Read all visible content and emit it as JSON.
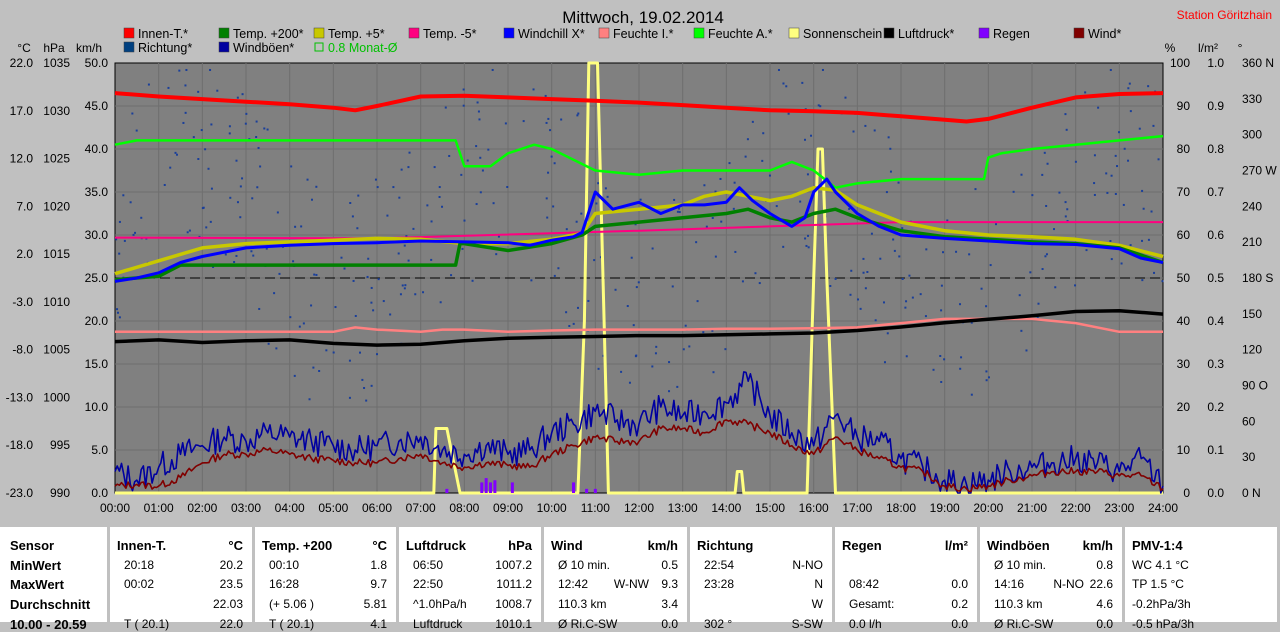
{
  "title": "Mittwoch, 19.02.2014",
  "station": "Station Göritzhain",
  "chart_data": {
    "type": "line",
    "x_labels": [
      "00:00",
      "01:00",
      "02:00",
      "03:00",
      "04:00",
      "05:00",
      "06:00",
      "07:00",
      "08:00",
      "09:00",
      "10:00",
      "11:00",
      "12:00",
      "13:00",
      "14:00",
      "15:00",
      "16:00",
      "17:00",
      "18:00",
      "19:00",
      "20:00",
      "21:00",
      "22:00",
      "23:00",
      "24:00"
    ],
    "xlim": [
      0,
      24
    ],
    "axes": {
      "temp": {
        "label": "°C",
        "ticks": [
          "22.0",
          "17.0",
          "12.0",
          "7.0",
          "2.0",
          "-3.0",
          "-8.0",
          "-13.0",
          "-18.0",
          "-23.0"
        ],
        "range": [
          -23,
          27
        ]
      },
      "pressure": {
        "label": "hPa",
        "ticks": [
          "1035",
          "1030",
          "1025",
          "1020",
          "1015",
          "1010",
          "1005",
          "1000",
          "995",
          "990"
        ],
        "range": [
          990,
          1040
        ]
      },
      "wind": {
        "label": "km/h",
        "ticks": [
          "50.0",
          "45.0",
          "40.0",
          "35.0",
          "30.0",
          "25.0",
          "20.0",
          "15.0",
          "10.0",
          "5.0",
          "0.0"
        ],
        "range": [
          0,
          50
        ]
      },
      "humidity": {
        "label": "%",
        "ticks": [
          "100",
          "90",
          "80",
          "70",
          "60",
          "50",
          "40",
          "30",
          "20",
          "10",
          "0"
        ],
        "range": [
          0,
          100
        ]
      },
      "rain": {
        "label": "l/m²",
        "ticks": [
          "1.0",
          "0.9",
          "0.8",
          "0.7",
          "0.6",
          "0.5",
          "0.4",
          "0.3",
          "0.2",
          "0.1",
          "0.0"
        ],
        "range": [
          0,
          1
        ]
      },
      "direction": {
        "label": "°",
        "ticks": [
          "360 N",
          "330",
          "300",
          "270 W",
          "240",
          "210",
          "180 S",
          "150",
          "120",
          "90 O",
          "60",
          "30",
          "0 N"
        ],
        "range": [
          0,
          360
        ]
      }
    },
    "legend": [
      {
        "name": "Innen-T.*",
        "color": "#ff0000"
      },
      {
        "name": "Temp. +200*",
        "color": "#008000"
      },
      {
        "name": "Temp. +5*",
        "color": "#c8c800"
      },
      {
        "name": "Temp. -5*",
        "color": "#ff0080"
      },
      {
        "name": "Windchill X*",
        "color": "#0000ff"
      },
      {
        "name": "Feuchte I.*",
        "color": "#ff8080"
      },
      {
        "name": "Feuchte A.*",
        "color": "#00ff00"
      },
      {
        "name": "Sonnenschein",
        "color": "#ffff80"
      },
      {
        "name": "Luftdruck*",
        "color": "#000000"
      },
      {
        "name": "Regen",
        "color": "#8000ff"
      },
      {
        "name": "Wind*",
        "color": "#800000"
      },
      {
        "name": "Richtung*",
        "color": "#004080"
      },
      {
        "name": "Windböen*",
        "color": "#0000a0"
      },
      {
        "name": "0.8 Monat-Ø",
        "color": "#00c000"
      }
    ],
    "series": [
      {
        "name": "Innen-T.*",
        "axis": "temp",
        "color": "#ff0000",
        "x": [
          0,
          1,
          2,
          3,
          4,
          5,
          5.5,
          6,
          7,
          8,
          9,
          10,
          11,
          12,
          13,
          14,
          15,
          16,
          17,
          18,
          19,
          19.5,
          20,
          21,
          22,
          23,
          24
        ],
        "y": [
          23.5,
          23.1,
          22.8,
          22.5,
          22.2,
          21.8,
          21.5,
          22.0,
          23.1,
          23.2,
          23.0,
          22.8,
          22.6,
          22.4,
          22.1,
          21.8,
          21.5,
          21.4,
          21.2,
          20.8,
          20.4,
          20.2,
          20.5,
          21.8,
          23.0,
          23.4,
          23.5
        ]
      },
      {
        "name": "Feuchte A.*",
        "axis": "humidity",
        "color": "#00ff00",
        "x": [
          0,
          0.5,
          1,
          2,
          3,
          4,
          5,
          6,
          7,
          7.8,
          8,
          8.6,
          9,
          9.6,
          10,
          11,
          12,
          13,
          14,
          15,
          15.5,
          16,
          16.5,
          17,
          18,
          19,
          19.9,
          20,
          20.3,
          21,
          22,
          23,
          24
        ],
        "y": [
          81,
          82,
          82,
          82,
          82,
          82,
          82,
          82,
          82,
          82,
          76,
          76,
          79,
          81,
          80,
          75,
          74,
          75,
          75,
          75,
          77,
          75,
          71,
          72,
          73,
          73,
          73,
          78,
          79,
          80,
          81,
          82,
          83
        ]
      },
      {
        "name": "Temp. +5*",
        "axis": "temp",
        "color": "#c8c800",
        "x": [
          0,
          1,
          2,
          3,
          4,
          5,
          6,
          7,
          8,
          9,
          10,
          10.7,
          11,
          12,
          13,
          13.5,
          14,
          14.5,
          15,
          15.5,
          16,
          16.5,
          17,
          18,
          19,
          20,
          21,
          22,
          23,
          24
        ],
        "y": [
          2.5,
          4.0,
          5.5,
          6.0,
          6.2,
          6.4,
          6.6,
          6.5,
          6.0,
          6.0,
          6.5,
          7.2,
          9.5,
          10.0,
          10.5,
          11.5,
          12.0,
          11.5,
          11.0,
          11.5,
          12.5,
          12.2,
          10.5,
          8.5,
          7.5,
          7.0,
          6.8,
          6.5,
          5.8,
          4.5
        ]
      },
      {
        "name": "Temp. +200*",
        "axis": "temp",
        "color": "#008000",
        "x": [
          0,
          1,
          1.5,
          2,
          3,
          4,
          5,
          6,
          7,
          7.8,
          7.9,
          8,
          9,
          10,
          10.7,
          11,
          12,
          13,
          14,
          14.5,
          15,
          15.5,
          16,
          16.5,
          17,
          18,
          19,
          20,
          21,
          22,
          23,
          24
        ],
        "y": [
          1.8,
          2.2,
          3.5,
          3.5,
          3.5,
          3.5,
          3.5,
          3.5,
          3.5,
          3.5,
          6.0,
          6.0,
          5.2,
          6.0,
          7.0,
          8.0,
          8.5,
          9.0,
          9.5,
          10.0,
          9.0,
          8.5,
          9.5,
          10.0,
          9.0,
          7.5,
          6.8,
          6.5,
          6.2,
          6.0,
          5.5,
          3.8
        ]
      },
      {
        "name": "Windchill X*",
        "axis": "temp",
        "color": "#0000ff",
        "x": [
          0,
          0.5,
          1,
          1.5,
          2,
          3,
          4,
          5,
          6,
          7,
          8,
          9,
          9.5,
          10,
          10.5,
          10.7,
          11,
          11.4,
          12,
          12.5,
          13,
          13.5,
          14,
          14.3,
          14.6,
          15,
          15.5,
          15.8,
          16,
          16.3,
          16.5,
          17,
          17.5,
          18,
          19,
          20,
          21,
          22,
          23,
          23.5,
          24
        ],
        "y": [
          1.6,
          2.0,
          2.6,
          3.8,
          4.5,
          5.5,
          5.8,
          6.0,
          6.1,
          6.3,
          6.2,
          6.1,
          5.8,
          6.4,
          6.8,
          7.3,
          12.0,
          10.0,
          10.8,
          9.5,
          10.5,
          10.5,
          10.8,
          12.5,
          11.0,
          9.5,
          8.0,
          9.0,
          12.0,
          13.5,
          12.0,
          9.5,
          8.0,
          7.0,
          6.6,
          6.3,
          6.0,
          5.9,
          5.4,
          4.3,
          3.8
        ]
      },
      {
        "name": "Temp. -5*",
        "axis": "temp",
        "color": "#ff0080",
        "x": [
          0,
          6,
          12,
          18,
          24
        ],
        "y": [
          6.7,
          6.6,
          7.5,
          8.5,
          8.5
        ]
      },
      {
        "name": "Luftdruck*",
        "axis": "pressure",
        "color": "#000000",
        "x": [
          0,
          1,
          2,
          3,
          4,
          5,
          6,
          7,
          8,
          9,
          10,
          11,
          12,
          13,
          14,
          15,
          16,
          17,
          18,
          19,
          20,
          21,
          22,
          23,
          24
        ],
        "y": [
          1007.6,
          1007.8,
          1007.5,
          1007.7,
          1007.8,
          1007.4,
          1007.2,
          1007.3,
          1007.7,
          1008.0,
          1008.1,
          1008.2,
          1008.3,
          1008.3,
          1008.4,
          1008.5,
          1008.6,
          1008.9,
          1009.3,
          1009.8,
          1010.2,
          1010.6,
          1011.1,
          1011.2,
          1010.8
        ]
      },
      {
        "name": "Feuchte I.*",
        "axis": "humidity",
        "color": "#ff8080",
        "x": [
          0,
          2,
          4,
          5,
          5.5,
          6,
          7,
          7.5,
          8,
          9,
          10,
          11,
          12,
          13,
          14,
          15,
          16,
          17,
          18,
          19,
          20,
          21,
          22,
          23,
          24
        ],
        "y": [
          37.5,
          37.5,
          37.5,
          37.5,
          38.5,
          38,
          37.5,
          38,
          38,
          37.5,
          37.8,
          38,
          38,
          38,
          38.2,
          38.2,
          38.3,
          38.5,
          39.5,
          40.5,
          40.5,
          40.5,
          39.5,
          37.5,
          37.5
        ]
      },
      {
        "name": "Windböen*",
        "axis": "wind",
        "color": "#0000a0",
        "x": [
          0,
          0.5,
          1,
          1.5,
          2,
          2.5,
          3,
          3.5,
          4,
          4.5,
          5,
          5.5,
          6,
          6.5,
          7,
          7.5,
          8,
          8.5,
          9,
          9.5,
          10,
          10.5,
          11,
          11.5,
          12,
          12.5,
          13,
          13.5,
          14,
          14.5,
          15,
          15.5,
          16,
          16.5,
          17,
          17.5,
          18,
          18.5,
          19,
          19.5,
          20,
          20.5,
          21,
          21.5,
          22,
          22.5,
          23,
          23.5,
          24
        ],
        "y": [
          2.5,
          1.5,
          3.0,
          4.5,
          5.5,
          6.5,
          6.0,
          7.0,
          6.5,
          6.0,
          5.5,
          5.0,
          5.5,
          6.0,
          6.5,
          5.0,
          4.5,
          5.5,
          4.5,
          5.0,
          7.0,
          8.0,
          9.5,
          8.5,
          8.0,
          10.0,
          9.0,
          9.5,
          10.5,
          13.0,
          9.0,
          7.0,
          5.5,
          9.0,
          6.5,
          6.0,
          4.0,
          3.0,
          1.5,
          1.0,
          1.5,
          2.5,
          3.0,
          3.5,
          4.0,
          3.5,
          2.5,
          4.0,
          0.8
        ]
      },
      {
        "name": "Wind*",
        "axis": "wind",
        "color": "#800000",
        "x": [
          0,
          0.5,
          1,
          1.5,
          2,
          2.5,
          3,
          3.5,
          4,
          4.5,
          5,
          5.5,
          6,
          6.5,
          7,
          7.5,
          8,
          8.5,
          9,
          9.5,
          10,
          10.5,
          11,
          11.5,
          12,
          12.5,
          13,
          13.5,
          14,
          14.5,
          15,
          15.5,
          16,
          16.5,
          17,
          17.5,
          18,
          18.5,
          19,
          19.5,
          20,
          20.5,
          21,
          21.5,
          22,
          22.5,
          23,
          23.5,
          24
        ],
        "y": [
          0.8,
          1.0,
          0.8,
          1.8,
          3.5,
          4.5,
          4.5,
          5.0,
          4.5,
          4.0,
          3.8,
          3.5,
          3.5,
          4.0,
          4.5,
          3.5,
          3.0,
          3.5,
          3.2,
          3.0,
          4.5,
          5.5,
          6.5,
          6.0,
          6.0,
          7.5,
          7.5,
          7.0,
          8.5,
          8.0,
          7.0,
          5.5,
          4.5,
          6.5,
          5.0,
          4.0,
          3.0,
          2.5,
          0.8,
          0.5,
          0.8,
          1.5,
          2.0,
          2.5,
          2.5,
          2.5,
          2.0,
          2.0,
          0.5
        ]
      },
      {
        "name": "Sonnenschein",
        "axis": "humidity",
        "color": "#ffff80",
        "x": [
          0,
          7.3,
          7.35,
          7.6,
          7.7,
          7.9,
          8.0,
          10.6,
          10.75,
          10.85,
          10.95,
          11.05,
          11.2,
          11.3,
          14.2,
          14.25,
          14.35,
          14.4,
          15.85,
          16.0,
          16.1,
          16.2,
          16.3,
          16.5,
          16.6,
          24
        ],
        "y": [
          0,
          0,
          15,
          15,
          10,
          0,
          0,
          0,
          40,
          100,
          100,
          100,
          40,
          0,
          0,
          5,
          5,
          0,
          0,
          50,
          80,
          80,
          50,
          0,
          0,
          0
        ]
      },
      {
        "name": "Regen",
        "axis": "rain",
        "color": "#8000ff",
        "x": [
          7.6,
          8.4,
          8.5,
          8.6,
          8.7,
          9.1,
          10.5,
          10.8,
          11.0
        ],
        "y": [
          0.005,
          0.02,
          0.03,
          0.02,
          0.025,
          0.02,
          0.02,
          0.005,
          0.005
        ]
      },
      {
        "name": "Monat-Ø",
        "axis": "direction",
        "color": "#000000",
        "value": 180
      }
    ],
    "ylim": [
      -23,
      27
    ]
  },
  "table": {
    "row_labels": [
      "Sensor",
      "MinWert",
      "MaxWert",
      "Durchschnitt",
      "10.00 - 20.59"
    ],
    "columns": [
      {
        "name": "Innen-T.",
        "unit": "°C",
        "rows": [
          [
            "20:18",
            "20.2"
          ],
          [
            "00:02",
            "23.5"
          ],
          [
            "",
            "22.03"
          ],
          [
            "T ( 20.1)",
            "22.0"
          ]
        ]
      },
      {
        "name": "Temp. +200",
        "unit": "°C",
        "rows": [
          [
            "00:10",
            "1.8"
          ],
          [
            "16:28",
            "9.7"
          ],
          [
            "(+ 5.06 )",
            "5.81"
          ],
          [
            "T ( 20.1)",
            "4.1"
          ]
        ]
      },
      {
        "name": "Luftdruck",
        "unit": "hPa",
        "rows": [
          [
            "06:50",
            "1007.2"
          ],
          [
            "22:50",
            "1011.2"
          ],
          [
            "^1.0hPa/h",
            "1008.7"
          ],
          [
            "Luftdruck",
            "1010.1"
          ]
        ]
      },
      {
        "name": "Wind",
        "unit": "km/h",
        "rows": [
          [
            "Ø 10 min.",
            "",
            "0.5"
          ],
          [
            "12:42",
            "W-NW",
            "9.3"
          ],
          [
            "110.3 km",
            "",
            "3.4"
          ],
          [
            "Ø Ri.C-SW",
            "",
            "0.0"
          ]
        ]
      },
      {
        "name": "Richtung",
        "unit": "",
        "rows": [
          [
            "22:54",
            "N-NO"
          ],
          [
            "23:28",
            "N"
          ],
          [
            "",
            "W"
          ],
          [
            "302 °",
            "S-SW"
          ]
        ]
      },
      {
        "name": "Regen",
        "unit": "l/m²",
        "rows": [
          [
            "",
            ""
          ],
          [
            "08:42",
            "0.0"
          ],
          [
            "Gesamt:",
            "0.2"
          ],
          [
            "0.0 l/h",
            "0.0"
          ]
        ]
      },
      {
        "name": "Windböen",
        "unit": "km/h",
        "rows": [
          [
            "Ø 10 min.",
            "",
            "0.8"
          ],
          [
            "14:16",
            "N-NO",
            "22.6"
          ],
          [
            "110.3 km",
            "",
            "4.6"
          ],
          [
            "Ø Ri.C-SW",
            "",
            "0.0"
          ]
        ]
      },
      {
        "name": "PMV-1:4",
        "unit": "",
        "rows": [
          [
            "WC 4.1 °C"
          ],
          [
            "TP 1.5 °C"
          ],
          [
            "-0.2hPa/3h"
          ],
          [
            "-0.5 hPa/3h"
          ]
        ]
      }
    ]
  }
}
